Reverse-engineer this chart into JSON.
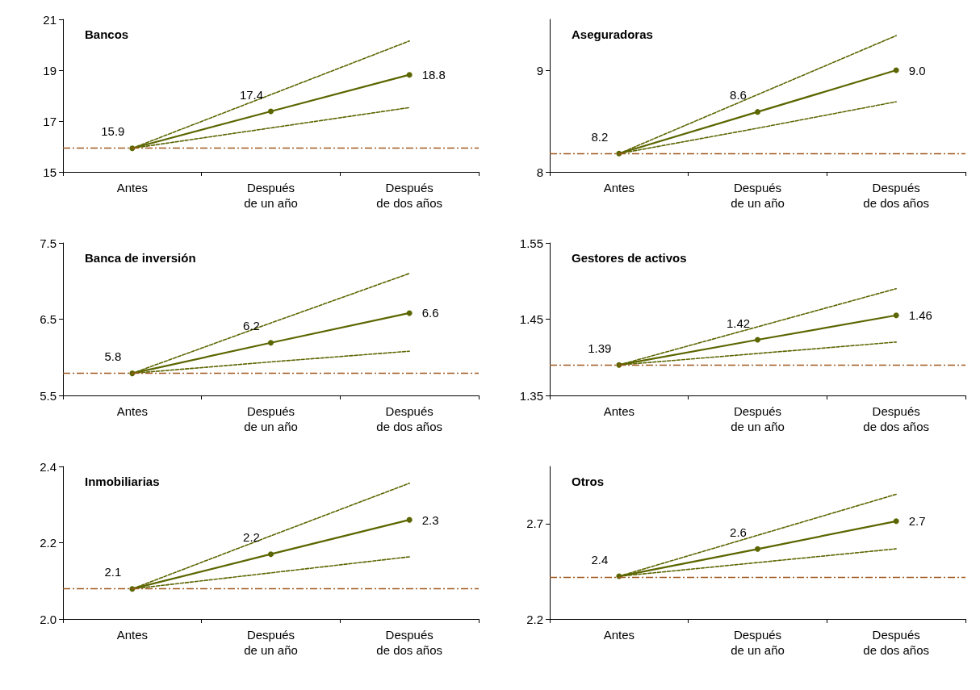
{
  "chart_data": [
    {
      "type": "line",
      "title": "Bancos",
      "categories": [
        "Antes",
        "Después de un año",
        "Después de dos años"
      ],
      "ylim": [
        15,
        21
      ],
      "yticks": [
        15,
        17,
        19,
        21
      ],
      "grid": false,
      "series": [
        {
          "color": "#5c6600",
          "values": [
            15.93,
            17.38,
            18.82
          ],
          "value_labels": [
            "15.9",
            "17.4",
            "18.8"
          ],
          "marker": "circle",
          "line_style": "solid"
        },
        {
          "color": "#5c6600",
          "values": [
            15.93,
            18.04,
            20.15
          ],
          "marker": "none",
          "line_style": "dashed"
        },
        {
          "color": "#5c6600",
          "values": [
            15.93,
            16.73,
            17.53
          ],
          "marker": "none",
          "line_style": "dashed"
        }
      ],
      "ref_lines": [
        {
          "axis": "y",
          "value": 15.93,
          "color": "#a0581e",
          "line_style": "dashdot"
        }
      ]
    },
    {
      "type": "line",
      "title": "Aseguradoras",
      "categories": [
        "Antes",
        "Después de un año",
        "Después de dos años"
      ],
      "ylim": [
        8,
        9.5
      ],
      "yticks": [
        8,
        9
      ],
      "grid": false,
      "series": [
        {
          "color": "#5c6600",
          "values": [
            8.18,
            8.59,
            9.0
          ],
          "value_labels": [
            "8.2",
            "8.6",
            "9.0"
          ],
          "marker": "circle",
          "line_style": "solid"
        },
        {
          "color": "#5c6600",
          "values": [
            8.18,
            8.76,
            9.34
          ],
          "marker": "none",
          "line_style": "dashed"
        },
        {
          "color": "#5c6600",
          "values": [
            8.18,
            8.43,
            8.69
          ],
          "marker": "none",
          "line_style": "dashed"
        }
      ],
      "ref_lines": [
        {
          "axis": "y",
          "value": 8.18,
          "color": "#a0581e",
          "line_style": "dashdot"
        }
      ]
    },
    {
      "type": "line",
      "title": "Banca de inversión",
      "categories": [
        "Antes",
        "Después de un año",
        "Después de dos años"
      ],
      "ylim": [
        5.5,
        7.5
      ],
      "yticks": [
        5.5,
        6.5,
        7.5
      ],
      "grid": false,
      "series": [
        {
          "color": "#5c6600",
          "values": [
            5.79,
            6.19,
            6.58
          ],
          "value_labels": [
            "5.8",
            "6.2",
            "6.6"
          ],
          "marker": "circle",
          "line_style": "solid"
        },
        {
          "color": "#5c6600",
          "values": [
            5.79,
            6.45,
            7.1
          ],
          "marker": "none",
          "line_style": "dashed"
        },
        {
          "color": "#5c6600",
          "values": [
            5.79,
            5.94,
            6.08
          ],
          "marker": "none",
          "line_style": "dashed"
        }
      ],
      "ref_lines": [
        {
          "axis": "y",
          "value": 5.79,
          "color": "#a0581e",
          "line_style": "dashdot"
        }
      ]
    },
    {
      "type": "line",
      "title": "Gestores de activos",
      "categories": [
        "Antes",
        "Después de un año",
        "Después de dos años"
      ],
      "ylim": [
        1.35,
        1.55
      ],
      "yticks": [
        1.35,
        1.45,
        1.55
      ],
      "grid": false,
      "series": [
        {
          "color": "#5c6600",
          "values": [
            1.39,
            1.423,
            1.455
          ],
          "value_labels": [
            "1.39",
            "1.42",
            "1.46"
          ],
          "marker": "circle",
          "line_style": "solid"
        },
        {
          "color": "#5c6600",
          "values": [
            1.39,
            1.44,
            1.49
          ],
          "marker": "none",
          "line_style": "dashed"
        },
        {
          "color": "#5c6600",
          "values": [
            1.39,
            1.405,
            1.42
          ],
          "marker": "none",
          "line_style": "dashed"
        }
      ],
      "ref_lines": [
        {
          "axis": "y",
          "value": 1.39,
          "color": "#a0581e",
          "line_style": "dashdot"
        }
      ]
    },
    {
      "type": "line",
      "title": "Inmobiliarias",
      "categories": [
        "Antes",
        "Después de un año",
        "Después de dos años"
      ],
      "ylim": [
        2.0,
        2.4
      ],
      "yticks": [
        {
          "value": 2.0,
          "label": "2.0"
        },
        2.2,
        2.4
      ],
      "grid": false,
      "series": [
        {
          "color": "#5c6600",
          "values": [
            2.079,
            2.17,
            2.26
          ],
          "value_labels": [
            "2.1",
            "2.2",
            "2.3"
          ],
          "marker": "circle",
          "line_style": "solid"
        },
        {
          "color": "#5c6600",
          "values": [
            2.079,
            2.218,
            2.356
          ],
          "marker": "none",
          "line_style": "dashed"
        },
        {
          "color": "#5c6600",
          "values": [
            2.079,
            2.121,
            2.163
          ],
          "marker": "none",
          "line_style": "dashed"
        }
      ],
      "ref_lines": [
        {
          "axis": "y",
          "value": 2.079,
          "color": "#a0581e",
          "line_style": "dashdot"
        }
      ]
    },
    {
      "type": "line",
      "title": "Otros",
      "categories": [
        "Antes",
        "Después de un año",
        "Después de dos años"
      ],
      "ylim": [
        2.2,
        3.0
      ],
      "yticks": [
        2.2,
        2.7
      ],
      "grid": false,
      "series": [
        {
          "color": "#5c6600",
          "values": [
            2.424,
            2.567,
            2.713
          ],
          "value_labels": [
            "2.4",
            "2.6",
            "2.7"
          ],
          "marker": "circle",
          "line_style": "solid"
        },
        {
          "color": "#5c6600",
          "values": [
            2.424,
            2.639,
            2.854
          ],
          "marker": "none",
          "line_style": "dashed"
        },
        {
          "color": "#5c6600",
          "values": [
            2.424,
            2.496,
            2.568
          ],
          "marker": "none",
          "line_style": "dashed"
        }
      ],
      "ref_lines": [
        {
          "axis": "y",
          "value": 2.424,
          "color": "#a0581e",
          "line_style": "dashdot"
        }
      ]
    }
  ]
}
